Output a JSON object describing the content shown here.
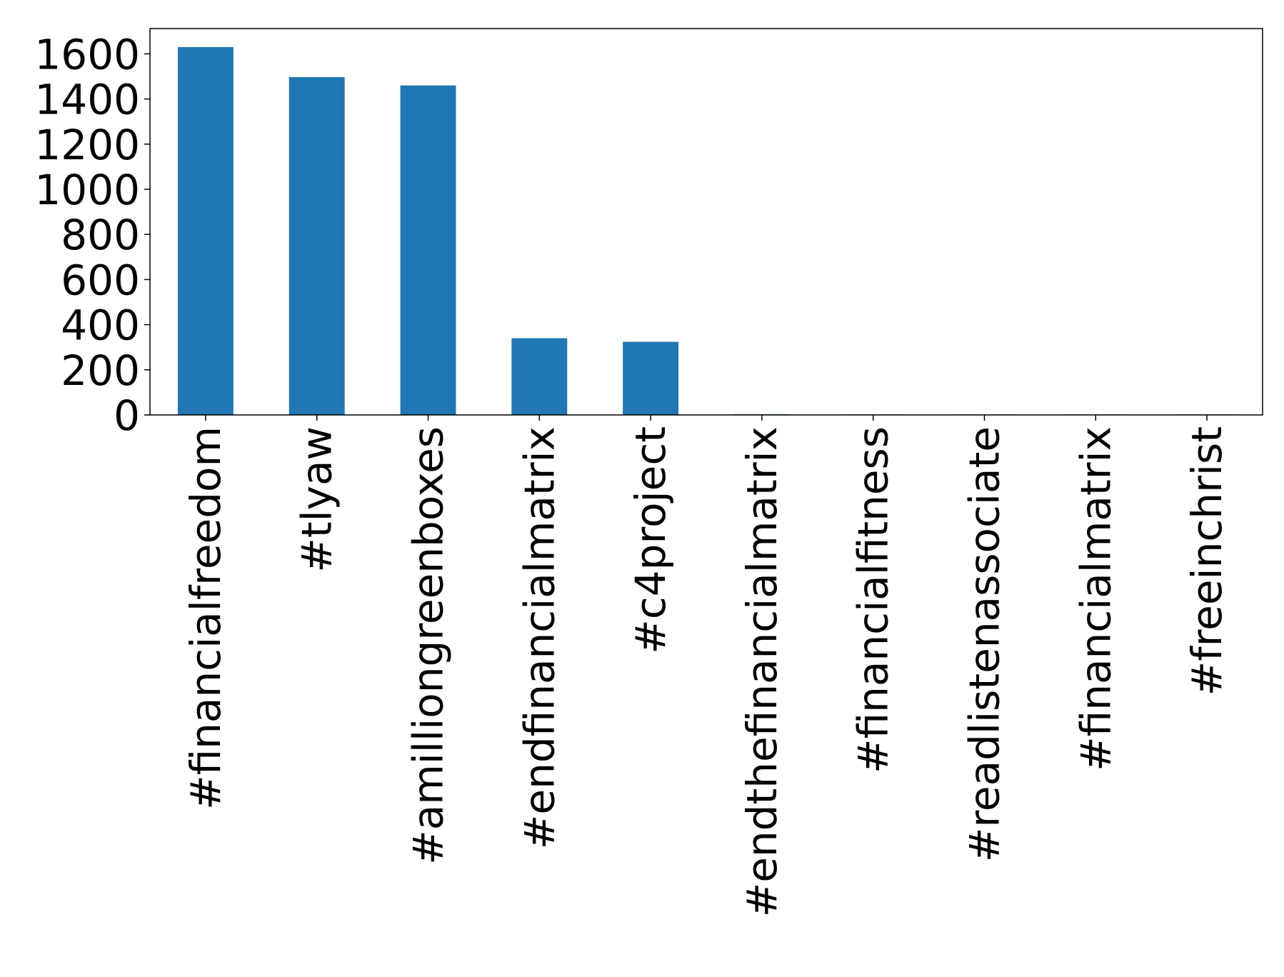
{
  "chart_data": {
    "type": "bar",
    "title": "",
    "xlabel": "",
    "ylabel": "",
    "categories": [
      "#financialfreedom",
      "#tlyaw",
      "#amilliongreenboxes",
      "#endfinancialmatrix",
      "#c4project",
      "#endthefinancialmatrix",
      "#financialfitness",
      "#readlistenassociate",
      "#financialmatrix",
      "#freeinchrist"
    ],
    "values": [
      1630,
      1497,
      1460,
      340,
      324,
      3,
      2,
      2,
      2,
      2
    ],
    "ylim": [
      0,
      1712
    ],
    "yticks": [
      0,
      200,
      400,
      600,
      800,
      1000,
      1200,
      1400,
      1600
    ],
    "grid": false,
    "legend": "none",
    "bar_color": "#1f77b4"
  }
}
